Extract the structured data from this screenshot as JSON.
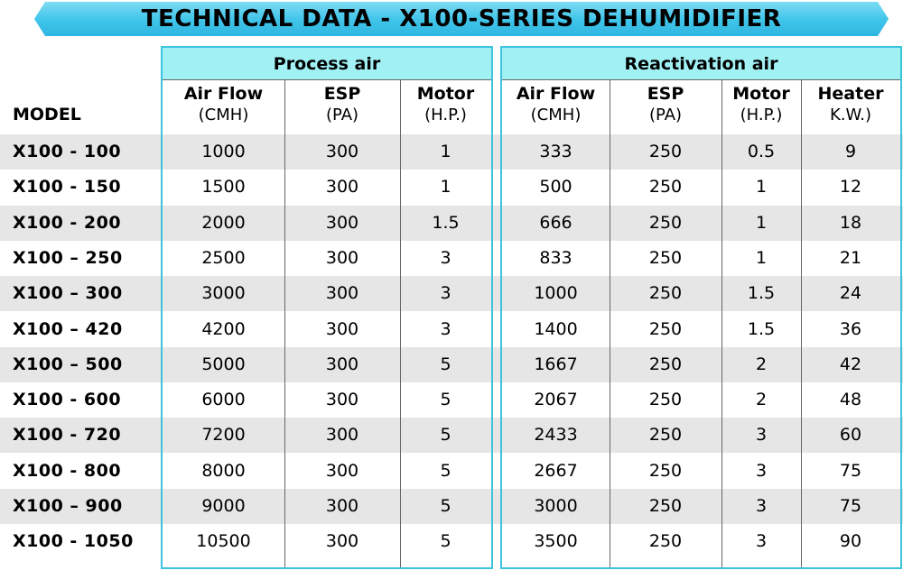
{
  "title": "TECHNICAL DATA - X100-SERIES DEHUMIDIFIER",
  "colors": {
    "banner": "#42c6ea",
    "group_header": "#a0f0f4",
    "border": "#3cc4dc",
    "stripe": "#e6e6e6"
  },
  "model_header": "MODEL",
  "groups": {
    "process": "Process air",
    "reactivation": "Reactivation air"
  },
  "columns": [
    {
      "name": "Air Flow",
      "unit": "(CMH)"
    },
    {
      "name": "ESP",
      "unit": "(PA)"
    },
    {
      "name": "Motor",
      "unit": "(H.P.)"
    },
    {
      "name": "Air Flow",
      "unit": "(CMH)"
    },
    {
      "name": "ESP",
      "unit": "(PA)"
    },
    {
      "name": "Motor",
      "unit": "(H.P.)"
    },
    {
      "name": "Heater",
      "unit": "K.W.)"
    }
  ],
  "rows": [
    {
      "model": "X100 - 100",
      "values": [
        "1000",
        "300",
        "1",
        "333",
        "250",
        "0.5",
        "9"
      ]
    },
    {
      "model": "X100 - 150",
      "values": [
        "1500",
        "300",
        "1",
        "500",
        "250",
        "1",
        "12"
      ]
    },
    {
      "model": "X100 - 200",
      "values": [
        "2000",
        "300",
        "1.5",
        "666",
        "250",
        "1",
        "18"
      ]
    },
    {
      "model": "X100 – 250",
      "values": [
        "2500",
        "300",
        "3",
        "833",
        "250",
        "1",
        "21"
      ]
    },
    {
      "model": "X100 – 300",
      "values": [
        "3000",
        "300",
        "3",
        "1000",
        "250",
        "1.5",
        "24"
      ]
    },
    {
      "model": "X100 – 420",
      "values": [
        "4200",
        "300",
        "3",
        "1400",
        "250",
        "1.5",
        "36"
      ]
    },
    {
      "model": "X100 – 500",
      "values": [
        "5000",
        "300",
        "5",
        "1667",
        "250",
        "2",
        "42"
      ]
    },
    {
      "model": "X100 - 600",
      "values": [
        "6000",
        "300",
        "5",
        "2067",
        "250",
        "2",
        "48"
      ]
    },
    {
      "model": "X100 - 720",
      "values": [
        "7200",
        "300",
        "5",
        "2433",
        "250",
        "3",
        "60"
      ]
    },
    {
      "model": "X100 - 800",
      "values": [
        "8000",
        "300",
        "5",
        "2667",
        "250",
        "3",
        "75"
      ]
    },
    {
      "model": "X100 – 900",
      "values": [
        "9000",
        "300",
        "5",
        "3000",
        "250",
        "3",
        "75"
      ]
    },
    {
      "model": "X100 - 1050",
      "values": [
        "10500",
        "300",
        "5",
        "3500",
        "250",
        "3",
        "90"
      ]
    }
  ]
}
